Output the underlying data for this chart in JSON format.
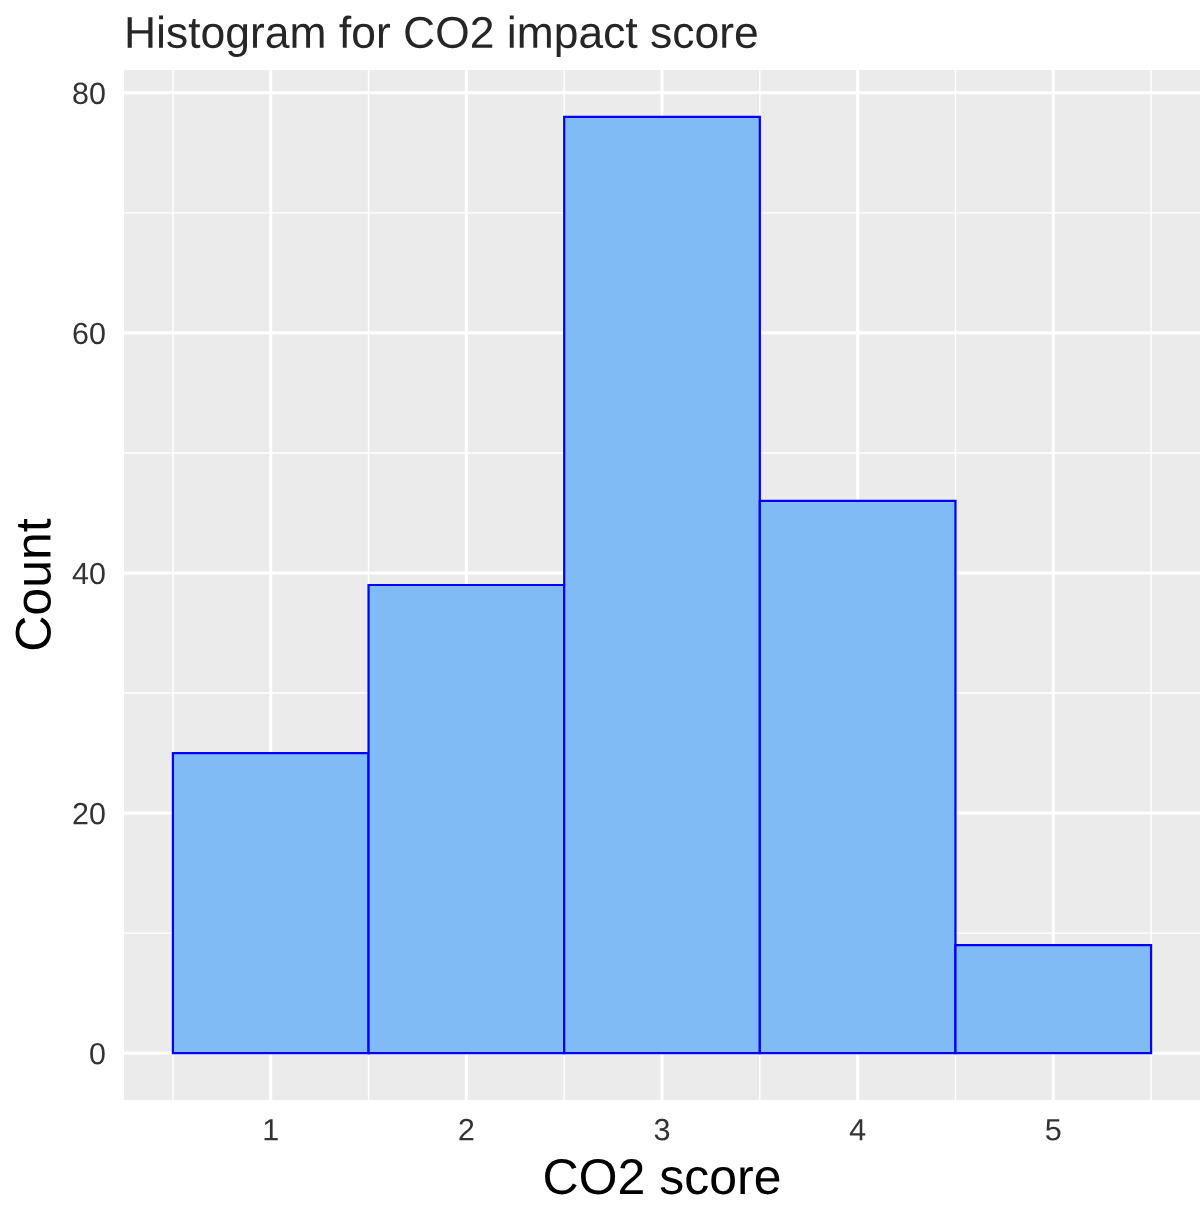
{
  "chart_data": {
    "type": "histogram",
    "title": "Histogram for CO2 impact score",
    "xlabel": "CO2 score",
    "ylabel": "Count",
    "bins": [
      0.5,
      1.5,
      2.5,
      3.5,
      4.5,
      5.5
    ],
    "values": [
      25,
      39,
      78,
      46,
      9
    ],
    "color": "#80bbf5",
    "xlim": [
      0.25,
      5.75
    ],
    "xticks": [
      1,
      2,
      3,
      4,
      5
    ],
    "ylim": [
      -3.9,
      81.9
    ],
    "yticks": [
      0,
      20,
      40,
      60,
      80
    ],
    "grid": true
  }
}
